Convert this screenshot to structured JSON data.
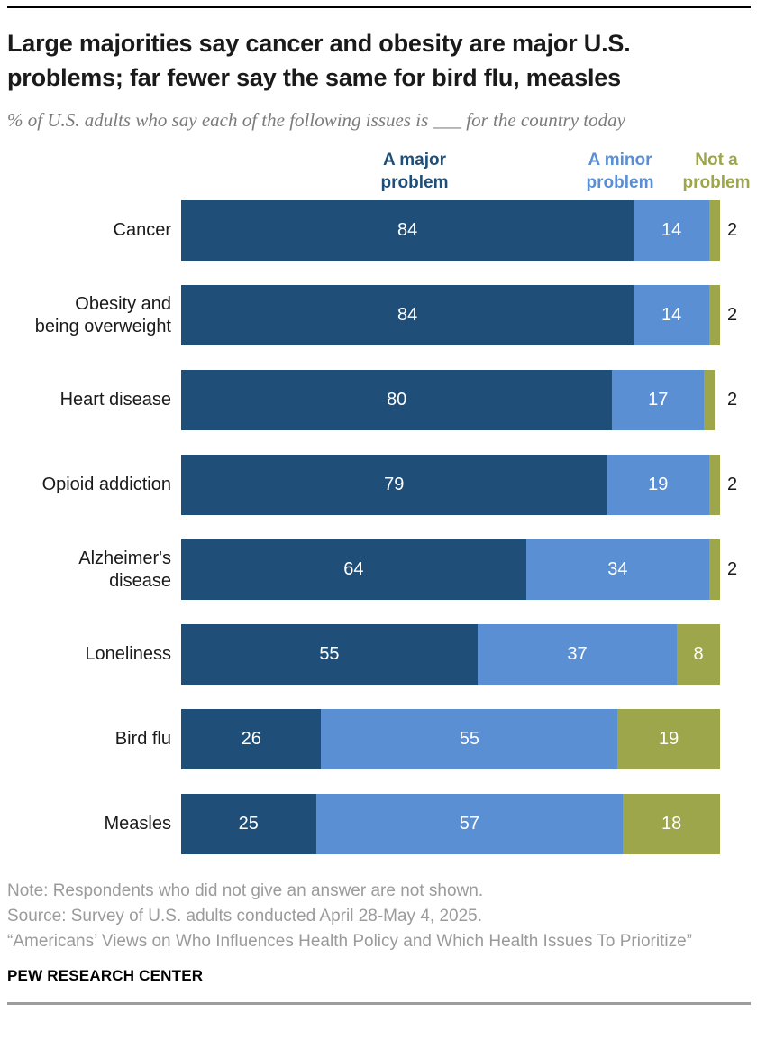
{
  "header": {
    "title": "Large majorities say cancer and obesity are major U.S. problems; far fewer say the same for bird flu, measles",
    "subtitle": "% of U.S. adults who say each of the following issues is ___ for the country today"
  },
  "legend": {
    "items": [
      {
        "label": "A major\nproblem",
        "color": "#1f4e79"
      },
      {
        "label": "A minor\nproblem",
        "color": "#5b8fd3"
      },
      {
        "label": "Not a\nproblem",
        "color": "#9da64a"
      }
    ]
  },
  "chart_data": {
    "type": "bar",
    "stacked": true,
    "orientation": "horizontal",
    "unit": "percent",
    "xlim": [
      0,
      100
    ],
    "grid": false,
    "legend_position": "top",
    "categories": [
      "Cancer",
      "Obesity and\nbeing overweight",
      "Heart disease",
      "Opioid addiction",
      "Alzheimer's\ndisease",
      "Loneliness",
      "Bird flu",
      "Measles"
    ],
    "series": [
      {
        "name": "A major problem",
        "color": "#1f4e79",
        "values": [
          84,
          84,
          80,
          79,
          64,
          55,
          26,
          25
        ]
      },
      {
        "name": "A minor problem",
        "color": "#5b8fd3",
        "values": [
          14,
          14,
          17,
          19,
          34,
          37,
          55,
          57
        ]
      },
      {
        "name": "Not a problem",
        "color": "#9da64a",
        "values": [
          2,
          2,
          2,
          2,
          2,
          8,
          19,
          18
        ]
      }
    ],
    "outside_label_threshold": 5,
    "value_label_color_inside": "#ffffff",
    "value_label_color_outside": "#1a1a1a"
  },
  "footer": {
    "note": "Note: Respondents who did not give an answer are not shown.",
    "source": "Source: Survey of U.S. adults conducted April 28-May 4, 2025.",
    "report": "“Americans’ Views on Who Influences Health Policy and Which Health Issues To Prioritize”",
    "brand": "PEW RESEARCH CENTER"
  }
}
